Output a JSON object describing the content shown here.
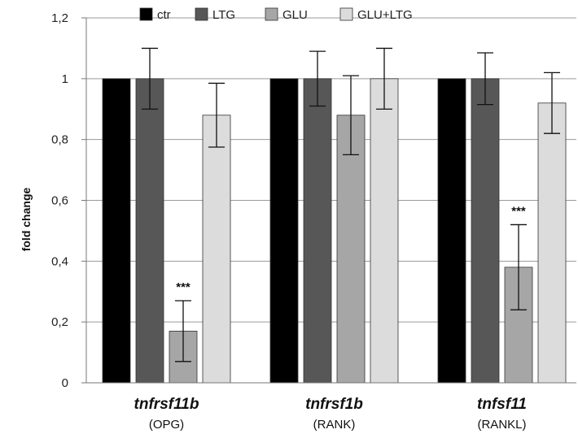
{
  "chart_data": {
    "type": "bar",
    "ylabel": "fold change",
    "ylim": [
      0,
      1.2
    ],
    "yticks": [
      "0",
      "0,2",
      "0,4",
      "0,6",
      "0,8",
      "1",
      "1,2"
    ],
    "ytick_values": [
      0,
      0.2,
      0.4,
      0.6,
      0.8,
      1.0,
      1.2
    ],
    "grid": true,
    "legend_position": "top",
    "categories": [
      {
        "name": "tnfrsf11b",
        "sub": "(OPG)"
      },
      {
        "name": "tnfrsf1b",
        "sub": "(RANK)"
      },
      {
        "name": "tnfsf11",
        "sub": "(RANKL)"
      }
    ],
    "series": [
      {
        "name": "ctr",
        "color": "#000000",
        "values": [
          1.0,
          1.0,
          1.0
        ],
        "errors": [
          0,
          0,
          0
        ]
      },
      {
        "name": "LTG",
        "color": "#575757",
        "values": [
          1.0,
          1.0,
          1.0
        ],
        "errors": [
          0.1,
          0.09,
          0.085
        ]
      },
      {
        "name": "GLU",
        "color": "#a6a6a6",
        "values": [
          0.17,
          0.88,
          0.38
        ],
        "errors": [
          0.1,
          0.13,
          0.14
        ]
      },
      {
        "name": "GLU+LTG",
        "color": "#dcdcdc",
        "values": [
          0.88,
          1.0,
          0.92
        ],
        "errors": [
          0.105,
          0.1,
          0.1
        ]
      }
    ],
    "annotations": [
      {
        "category": 0,
        "series": 2,
        "text": "***"
      },
      {
        "category": 2,
        "series": 2,
        "text": "***"
      }
    ]
  }
}
